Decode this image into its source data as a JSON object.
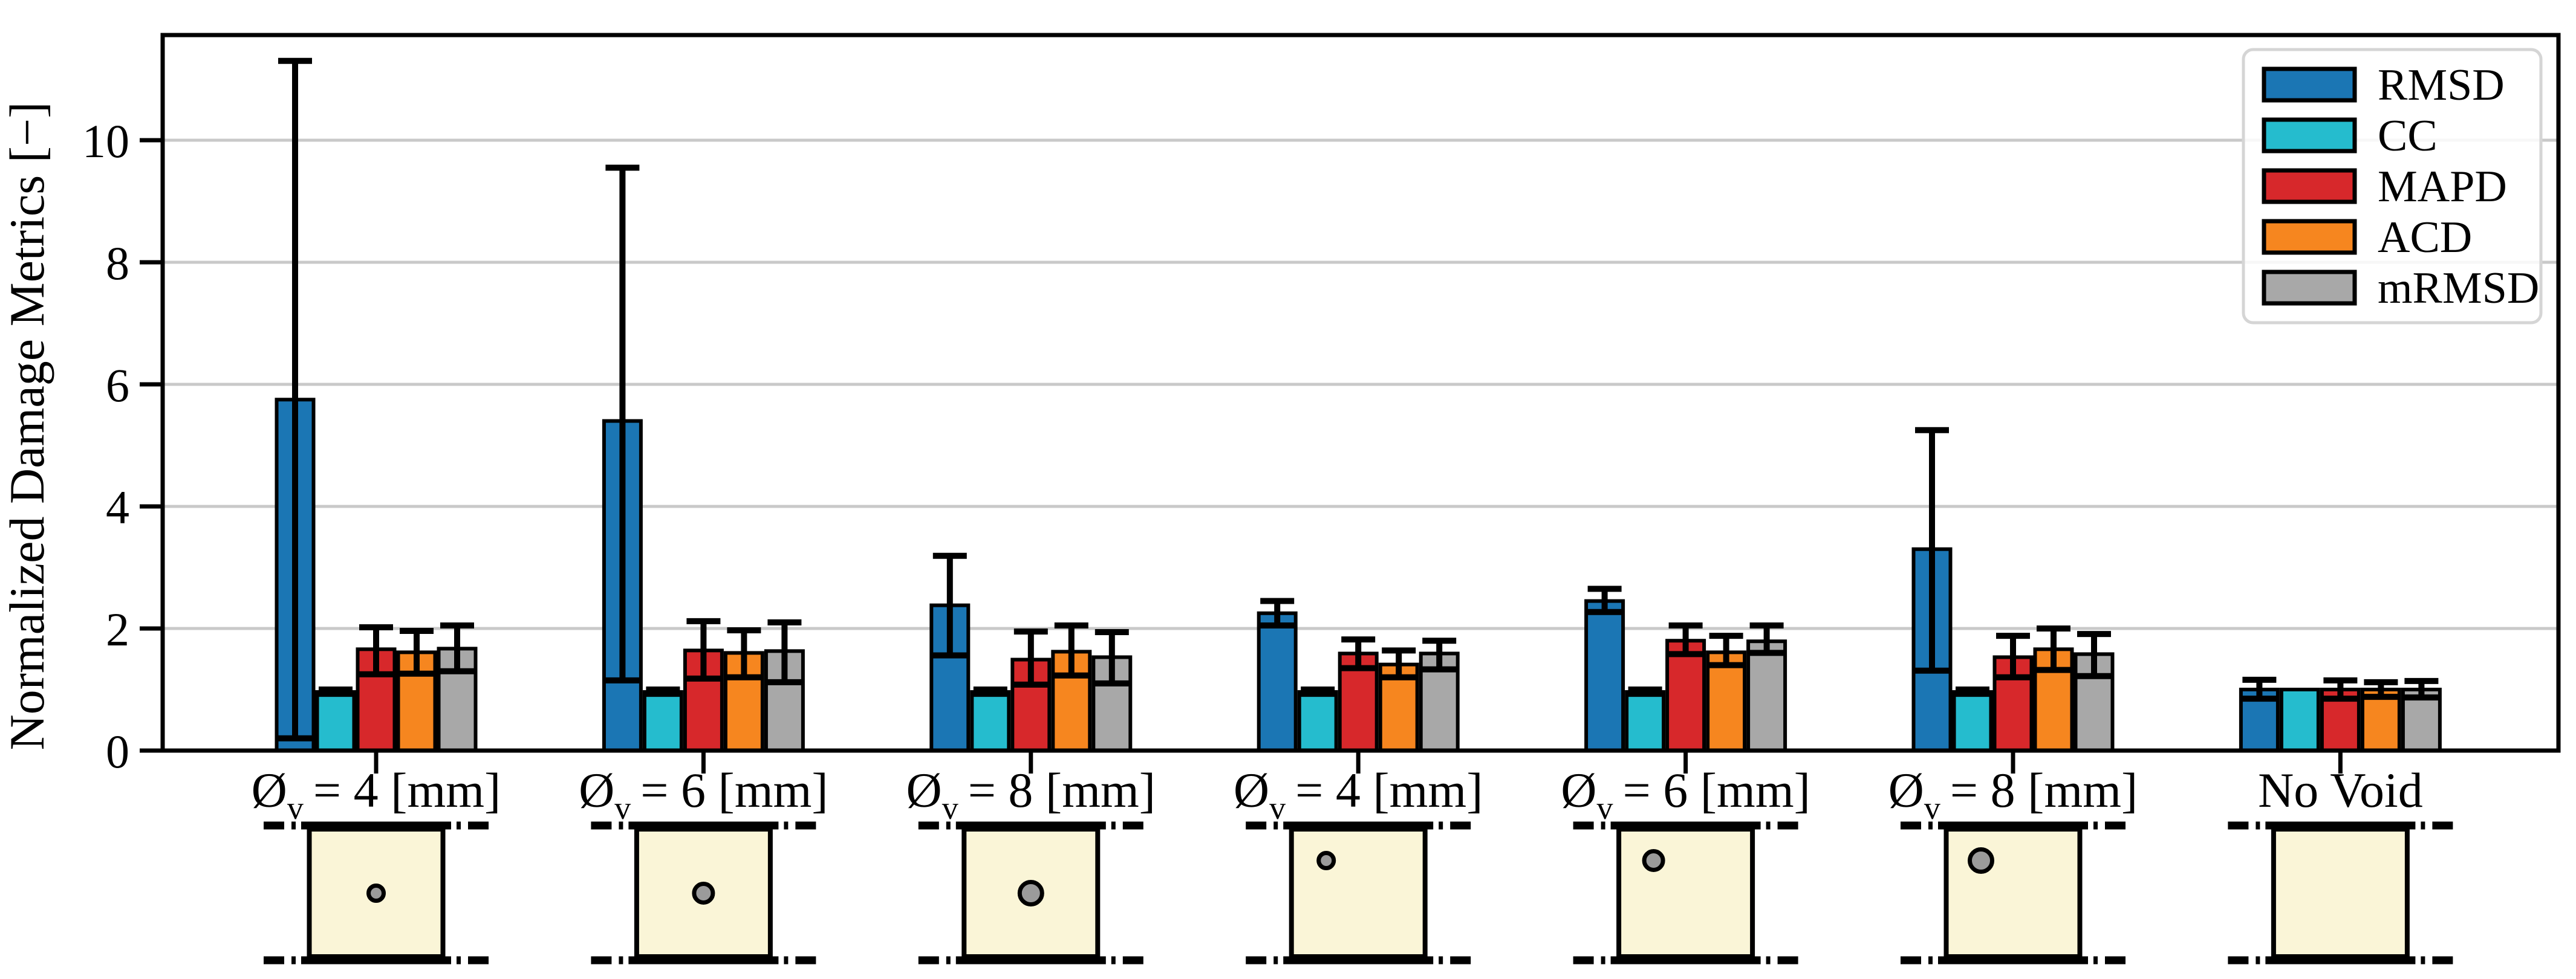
{
  "chart_data": {
    "type": "bar",
    "title": "",
    "xlabel": "",
    "ylabel": "Normalized Damage Metrics [−]",
    "ylim": [
      0,
      11.72
    ],
    "yticks": [
      0,
      2,
      4,
      6,
      8,
      10
    ],
    "grid": true,
    "grid_axis": "y",
    "legend_position": "upper right",
    "categories": [
      {
        "prefix": "Ø",
        "sub": "v",
        "suffix": "= 4 [mm]",
        "plain": "Øv = 4 [mm]",
        "specimen": {
          "void_position": "center",
          "void_diameter_mm": 4
        }
      },
      {
        "prefix": "Ø",
        "sub": "v",
        "suffix": "= 6 [mm]",
        "plain": "Øv = 6 [mm]",
        "specimen": {
          "void_position": "center",
          "void_diameter_mm": 6
        }
      },
      {
        "prefix": "Ø",
        "sub": "v",
        "suffix": "= 8 [mm]",
        "plain": "Øv = 8 [mm]",
        "specimen": {
          "void_position": "center",
          "void_diameter_mm": 8
        }
      },
      {
        "prefix": "Ø",
        "sub": "v",
        "suffix": "= 4 [mm]",
        "plain": "Øv = 4 [mm]",
        "specimen": {
          "void_position": "top",
          "void_diameter_mm": 4
        }
      },
      {
        "prefix": "Ø",
        "sub": "v",
        "suffix": "= 6 [mm]",
        "plain": "Øv = 6 [mm]",
        "specimen": {
          "void_position": "top",
          "void_diameter_mm": 6
        }
      },
      {
        "prefix": "Ø",
        "sub": "v",
        "suffix": "= 8 [mm]",
        "plain": "Øv = 8 [mm]",
        "specimen": {
          "void_position": "top",
          "void_diameter_mm": 8
        }
      },
      {
        "prefix": "",
        "sub": "",
        "suffix": "No Void",
        "plain": "No Void",
        "specimen": {
          "void_position": "none",
          "void_diameter_mm": 0
        }
      }
    ],
    "series": [
      {
        "name": "RMSD",
        "color": "#1b76b4",
        "values": [
          5.75,
          5.4,
          2.38,
          2.25,
          2.45,
          3.3,
          1.0
        ],
        "err_lo": [
          0.2,
          1.15,
          1.56,
          2.05,
          2.27,
          1.31,
          0.85
        ],
        "err_hi": [
          11.3,
          9.55,
          3.19,
          2.45,
          2.65,
          5.25,
          1.16
        ]
      },
      {
        "name": "CC",
        "color": "#25bcce",
        "values": [
          0.96,
          0.96,
          0.96,
          0.96,
          0.96,
          0.96,
          1.0
        ],
        "err_lo": [
          0.93,
          0.93,
          0.93,
          0.93,
          0.93,
          0.93,
          1.0
        ],
        "err_hi": [
          1.0,
          1.0,
          1.0,
          1.0,
          1.0,
          1.0,
          1.0
        ]
      },
      {
        "name": "MAPD",
        "color": "#d7282b",
        "values": [
          1.66,
          1.64,
          1.49,
          1.59,
          1.8,
          1.53,
          1.0
        ],
        "err_lo": [
          1.25,
          1.18,
          1.08,
          1.35,
          1.58,
          1.2,
          0.85
        ],
        "err_hi": [
          2.02,
          2.12,
          1.95,
          1.82,
          2.05,
          1.88,
          1.15
        ]
      },
      {
        "name": "ACD",
        "color": "#f6861f",
        "values": [
          1.61,
          1.6,
          1.62,
          1.41,
          1.61,
          1.66,
          1.0
        ],
        "err_lo": [
          1.26,
          1.2,
          1.23,
          1.2,
          1.4,
          1.32,
          0.88
        ],
        "err_hi": [
          1.96,
          1.97,
          2.05,
          1.64,
          1.88,
          2.0,
          1.12
        ]
      },
      {
        "name": "mRMSD",
        "color": "#a8a8a8",
        "values": [
          1.67,
          1.63,
          1.53,
          1.59,
          1.79,
          1.58,
          1.0
        ],
        "err_lo": [
          1.3,
          1.12,
          1.1,
          1.33,
          1.6,
          1.22,
          0.87
        ],
        "err_hi": [
          2.05,
          2.1,
          1.94,
          1.8,
          2.05,
          1.91,
          1.14
        ]
      }
    ],
    "legend_labels": [
      "RMSD",
      "CC",
      "MAPD",
      "ACD",
      "mRMSD"
    ],
    "style": {
      "grid_color": "#c9c9c9",
      "spine_color": "#000000",
      "errorbar_color": "#000000",
      "bar_edge_color": "#000000",
      "legend_border_color": "#d5d5d5",
      "specimen_fill": "#faf5d7",
      "specimen_edge": "#000000",
      "void_fill": "#9b9b9b"
    }
  }
}
